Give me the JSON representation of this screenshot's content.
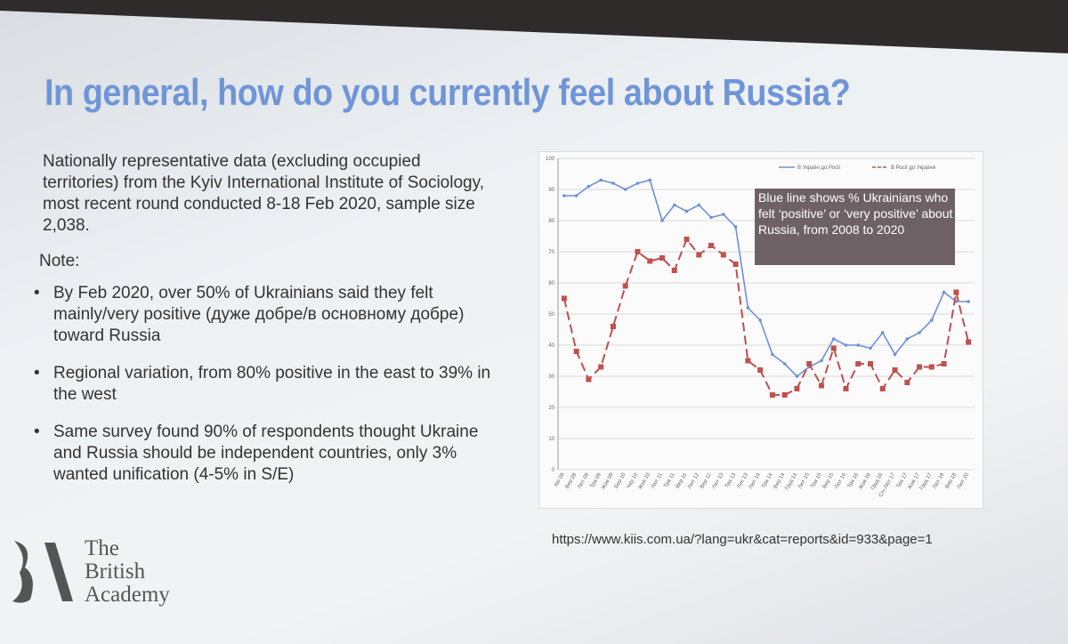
{
  "slide": {
    "title": "In general, how do you currently feel about Russia?",
    "intro": "Nationally representative data (excluding occupied territories) from the Kyiv International Institute of Sociology, most recent round conducted 8-18 Feb 2020, sample size 2,038.",
    "note": "Note:",
    "bullets": [
      "By Feb 2020, over 50% of Ukrainians said they felt mainly/very positive (дуже добре/в основному добре) toward Russia",
      "Regional variation, from 80% positive in the east to 39% in the west",
      "Same survey found 90% of respondents thought Ukraine and Russia should be independent countries, only 3% wanted unification (4-5% in S/E)"
    ],
    "url": "https://www.kiis.com.ua/?lang=ukr&cat=reports&id=933&page=1",
    "logo": [
      "The",
      "British",
      "Academy"
    ]
  },
  "chart_data": {
    "type": "line",
    "annotation": "Blue line shows % Ukrainians who felt ‘positive’ or ‘very positive’ about Russia, from 2008 to 2020",
    "categories": [
      "Кві 08",
      "Вер 08",
      "Лют 09",
      "Тра 09",
      "Жов 09",
      "Бер 10",
      "Чер 10",
      "Жов 10",
      "Лют 11",
      "Тра 11",
      "Вер 11",
      "Лют 12",
      "Вер 12",
      "Лют 13",
      "Тра 13",
      "Лис 13",
      "Лют 14",
      "Тра 14",
      "Вер 14",
      "Груд 14",
      "Лют 15",
      "Тра 15",
      "Вер 15",
      "Лют 16",
      "Тра 16",
      "Жов 16",
      "Груд 16",
      "Січ-Лют 17",
      "Тра 17",
      "Жов 17",
      "Груд 17",
      "Лют 18",
      "Вер 18",
      "Лют 20"
    ],
    "series": [
      {
        "name": "В Україні до Росії",
        "color": "#6f8fd8",
        "dashed": false,
        "values": [
          88,
          88,
          91,
          93,
          92,
          90,
          92,
          93,
          80,
          85,
          83,
          85,
          81,
          82,
          78,
          52,
          48,
          37,
          34,
          30,
          33,
          35,
          42,
          40,
          40,
          39,
          44,
          37,
          42,
          44,
          48,
          57,
          54,
          54
        ]
      },
      {
        "name": "В Росії до України",
        "color": "#c0504d",
        "dashed": true,
        "values": [
          55,
          38,
          29,
          33,
          46,
          59,
          70,
          67,
          68,
          64,
          74,
          69,
          72,
          69,
          66,
          35,
          32,
          24,
          24,
          26,
          34,
          27,
          39,
          26,
          34,
          34,
          26,
          32,
          28,
          33,
          33,
          34,
          57,
          41
        ]
      }
    ],
    "ylim": [
      0,
      100
    ],
    "yticks": [
      0,
      10,
      20,
      30,
      40,
      50,
      60,
      70,
      80,
      90,
      100
    ],
    "grid": true,
    "legend": "top-right"
  }
}
